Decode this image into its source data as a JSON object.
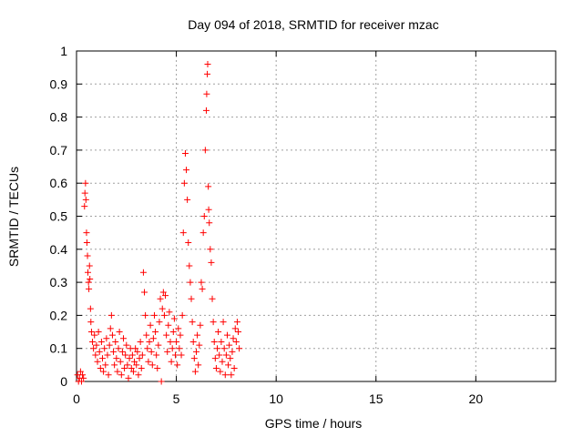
{
  "chart_data": {
    "type": "scatter",
    "title": "Day 094 of 2018, SRMTID for receiver mzac",
    "xlabel": "GPS time / hours",
    "ylabel": "SRMTID / TECUs",
    "xlim": [
      0,
      24
    ],
    "ylim": [
      0,
      1
    ],
    "xticks": [
      0,
      5,
      10,
      15,
      20
    ],
    "yticks": [
      0,
      0.1,
      0.2,
      0.3,
      0.4,
      0.5,
      0.6,
      0.7,
      0.8,
      0.9,
      1
    ],
    "grid": true,
    "marker": "+",
    "color": "#ff0000",
    "series": [
      {
        "name": "SRMTID",
        "points": [
          [
            0.05,
            0.02
          ],
          [
            0.1,
            0.0
          ],
          [
            0.15,
            0.01
          ],
          [
            0.2,
            0.03
          ],
          [
            0.25,
            0.0
          ],
          [
            0.3,
            0.02
          ],
          [
            0.35,
            0.01
          ],
          [
            0.4,
            0.53
          ],
          [
            0.42,
            0.57
          ],
          [
            0.45,
            0.6
          ],
          [
            0.47,
            0.55
          ],
          [
            0.5,
            0.45
          ],
          [
            0.52,
            0.42
          ],
          [
            0.55,
            0.38
          ],
          [
            0.57,
            0.33
          ],
          [
            0.6,
            0.3
          ],
          [
            0.62,
            0.28
          ],
          [
            0.65,
            0.35
          ],
          [
            0.67,
            0.31
          ],
          [
            0.7,
            0.22
          ],
          [
            0.72,
            0.18
          ],
          [
            0.75,
            0.15
          ],
          [
            0.8,
            0.12
          ],
          [
            0.85,
            0.1
          ],
          [
            0.9,
            0.14
          ],
          [
            0.95,
            0.08
          ],
          [
            1.0,
            0.11
          ],
          [
            1.05,
            0.06
          ],
          [
            1.1,
            0.15
          ],
          [
            1.15,
            0.09
          ],
          [
            1.2,
            0.04
          ],
          [
            1.25,
            0.12
          ],
          [
            1.3,
            0.07
          ],
          [
            1.35,
            0.03
          ],
          [
            1.4,
            0.1
          ],
          [
            1.45,
            0.05
          ],
          [
            1.5,
            0.13
          ],
          [
            1.55,
            0.08
          ],
          [
            1.6,
            0.02
          ],
          [
            1.65,
            0.11
          ],
          [
            1.7,
            0.16
          ],
          [
            1.75,
            0.2
          ],
          [
            1.8,
            0.14
          ],
          [
            1.85,
            0.09
          ],
          [
            1.9,
            0.05
          ],
          [
            1.95,
            0.12
          ],
          [
            2.0,
            0.07
          ],
          [
            2.05,
            0.03
          ],
          [
            2.1,
            0.1
          ],
          [
            2.15,
            0.15
          ],
          [
            2.2,
            0.06
          ],
          [
            2.25,
            0.02
          ],
          [
            2.3,
            0.09
          ],
          [
            2.35,
            0.13
          ],
          [
            2.4,
            0.04
          ],
          [
            2.45,
            0.08
          ],
          [
            2.5,
            0.11
          ],
          [
            2.55,
            0.05
          ],
          [
            2.6,
            0.01
          ],
          [
            2.65,
            0.07
          ],
          [
            2.7,
            0.1
          ],
          [
            2.75,
            0.04
          ],
          [
            2.8,
            0.08
          ],
          [
            2.85,
            0.03
          ],
          [
            2.9,
            0.06
          ],
          [
            2.95,
            0.1
          ],
          [
            3.0,
            0.05
          ],
          [
            3.05,
            0.09
          ],
          [
            3.1,
            0.02
          ],
          [
            3.15,
            0.07
          ],
          [
            3.2,
            0.12
          ],
          [
            3.25,
            0.04
          ],
          [
            3.3,
            0.08
          ],
          [
            3.35,
            0.33
          ],
          [
            3.4,
            0.27
          ],
          [
            3.45,
            0.2
          ],
          [
            3.5,
            0.14
          ],
          [
            3.55,
            0.1
          ],
          [
            3.6,
            0.06
          ],
          [
            3.65,
            0.12
          ],
          [
            3.7,
            0.17
          ],
          [
            3.75,
            0.09
          ],
          [
            3.8,
            0.05
          ],
          [
            3.85,
            0.13
          ],
          [
            3.9,
            0.2
          ],
          [
            3.95,
            0.15
          ],
          [
            4.0,
            0.08
          ],
          [
            4.05,
            0.04
          ],
          [
            4.1,
            0.11
          ],
          [
            4.15,
            0.18
          ],
          [
            4.2,
            0.25
          ],
          [
            4.25,
            0.0
          ],
          [
            4.3,
            0.22
          ],
          [
            4.35,
            0.27
          ],
          [
            4.4,
            0.2
          ],
          [
            4.45,
            0.26
          ],
          [
            4.5,
            0.14
          ],
          [
            4.55,
            0.09
          ],
          [
            4.6,
            0.17
          ],
          [
            4.65,
            0.21
          ],
          [
            4.7,
            0.12
          ],
          [
            4.75,
            0.06
          ],
          [
            4.8,
            0.1
          ],
          [
            4.85,
            0.15
          ],
          [
            4.9,
            0.19
          ],
          [
            4.95,
            0.08
          ],
          [
            5.0,
            0.12
          ],
          [
            5.05,
            0.05
          ],
          [
            5.1,
            0.16
          ],
          [
            5.15,
            0.1
          ],
          [
            5.2,
            0.14
          ],
          [
            5.25,
            0.08
          ],
          [
            5.3,
            0.2
          ],
          [
            5.35,
            0.45
          ],
          [
            5.4,
            0.6
          ],
          [
            5.45,
            0.69
          ],
          [
            5.5,
            0.64
          ],
          [
            5.55,
            0.55
          ],
          [
            5.6,
            0.42
          ],
          [
            5.65,
            0.35
          ],
          [
            5.7,
            0.3
          ],
          [
            5.75,
            0.25
          ],
          [
            5.8,
            0.18
          ],
          [
            5.85,
            0.12
          ],
          [
            5.9,
            0.07
          ],
          [
            5.95,
            0.03
          ],
          [
            6.0,
            0.09
          ],
          [
            6.05,
            0.14
          ],
          [
            6.1,
            0.05
          ],
          [
            6.15,
            0.11
          ],
          [
            6.2,
            0.17
          ],
          [
            6.25,
            0.3
          ],
          [
            6.3,
            0.28
          ],
          [
            6.35,
            0.45
          ],
          [
            6.4,
            0.5
          ],
          [
            6.45,
            0.7
          ],
          [
            6.5,
            0.82
          ],
          [
            6.52,
            0.87
          ],
          [
            6.55,
            0.93
          ],
          [
            6.57,
            0.96
          ],
          [
            6.6,
            0.59
          ],
          [
            6.62,
            0.52
          ],
          [
            6.65,
            0.48
          ],
          [
            6.7,
            0.4
          ],
          [
            6.75,
            0.36
          ],
          [
            6.8,
            0.25
          ],
          [
            6.85,
            0.18
          ],
          [
            6.9,
            0.12
          ],
          [
            6.95,
            0.07
          ],
          [
            7.0,
            0.04
          ],
          [
            7.05,
            0.1
          ],
          [
            7.1,
            0.15
          ],
          [
            7.15,
            0.08
          ],
          [
            7.2,
            0.03
          ],
          [
            7.25,
            0.12
          ],
          [
            7.3,
            0.06
          ],
          [
            7.35,
            0.18
          ],
          [
            7.4,
            0.1
          ],
          [
            7.45,
            0.02
          ],
          [
            7.5,
            0.08
          ],
          [
            7.55,
            0.14
          ],
          [
            7.6,
            0.05
          ],
          [
            7.65,
            0.11
          ],
          [
            7.7,
            0.07
          ],
          [
            7.75,
            0.02
          ],
          [
            7.8,
            0.09
          ],
          [
            7.85,
            0.13
          ],
          [
            7.9,
            0.04
          ],
          [
            7.95,
            0.16
          ],
          [
            8.0,
            0.12
          ],
          [
            8.05,
            0.18
          ],
          [
            8.1,
            0.15
          ],
          [
            8.15,
            0.1
          ]
        ]
      }
    ]
  }
}
